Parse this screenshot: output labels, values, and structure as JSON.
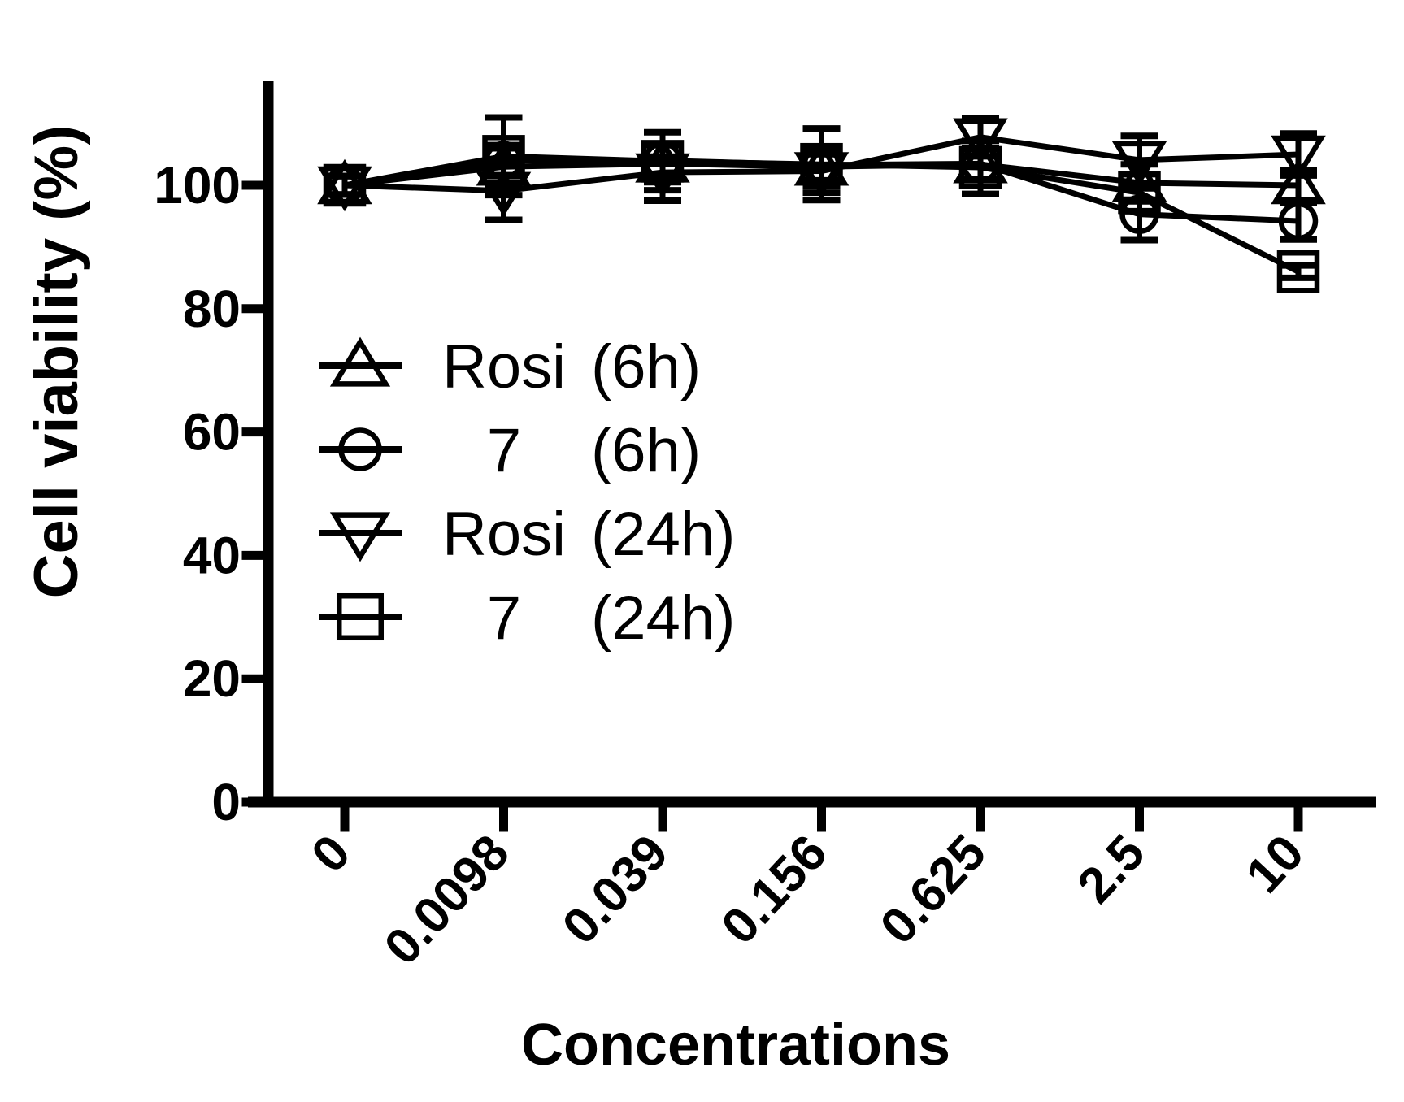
{
  "figure_title": "",
  "chart_data": {
    "type": "line",
    "title": "",
    "xlabel": "Concentrations",
    "ylabel": "Cell viability (%)",
    "categories": [
      "0",
      "0.0098",
      "0.039",
      "0.156",
      "0.625",
      "2.5",
      "10"
    ],
    "y_ticks": [
      0,
      20,
      40,
      60,
      80,
      100
    ],
    "ylim": [
      0,
      117
    ],
    "grid": false,
    "legend_position": "inside-left-middle",
    "error_bars": true,
    "colors": {
      "stroke": "#000000",
      "background": "#ffffff"
    },
    "series": [
      {
        "name": "Rosi",
        "time": "(6h)",
        "marker": "triangle-up",
        "values": [
          100,
          103,
          103.5,
          103,
          103.4,
          100.4,
          100
        ],
        "errors": [
          1.5,
          3,
          3,
          3,
          2.5,
          3,
          2.5
        ]
      },
      {
        "name": "7",
        "time": "(6h)",
        "marker": "circle",
        "values": [
          100,
          104,
          104,
          103.3,
          103.5,
          95.3,
          94.2
        ],
        "errors": [
          1.5,
          2.5,
          2.5,
          2.5,
          2.5,
          4.2,
          3
        ]
      },
      {
        "name": "Rosi",
        "time": "(24h)",
        "marker": "triangle-down",
        "values": [
          100,
          99.1,
          102.1,
          102.3,
          107.8,
          104.1,
          105
        ],
        "errors": [
          1.5,
          4.7,
          4.6,
          3.5,
          3.1,
          3.9,
          3.4
        ]
      },
      {
        "name": "7",
        "time": "(24h)",
        "marker": "square",
        "values": [
          100,
          104.7,
          103.9,
          103.4,
          102.9,
          98.8,
          86
        ],
        "errors": [
          1.5,
          6.3,
          4.7,
          5.8,
          4.3,
          3,
          1
        ]
      }
    ]
  }
}
